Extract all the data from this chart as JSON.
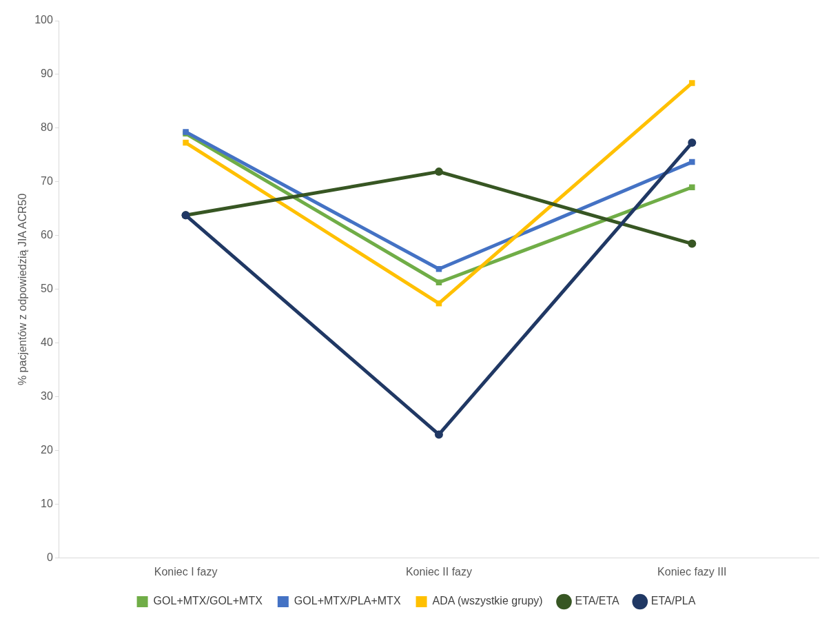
{
  "chart_data": {
    "type": "line",
    "ylabel": "% pacjentów z odpowiedzią JIA ACR50",
    "categories": [
      "Koniec I fazy",
      "Koniec II fazy",
      "Koniec fazy III"
    ],
    "ylim": [
      0,
      100
    ],
    "yticks": [
      0,
      10,
      20,
      30,
      40,
      50,
      60,
      70,
      80,
      90,
      100
    ],
    "grid": false,
    "legend": "bottom",
    "line_style": "solid",
    "series": [
      {
        "name": "GOL+MTX/GOL+MTX",
        "color": "#70ad47",
        "marker": "square",
        "values": [
          79,
          51.3,
          69
        ]
      },
      {
        "name": "GOL+MTX/PLA+MTX",
        "color": "#4472c4",
        "marker": "square",
        "values": [
          79.3,
          53.8,
          73.7
        ]
      },
      {
        "name": "ADA (wszystkie grupy)",
        "color": "#ffc000",
        "marker": "square",
        "values": [
          77.3,
          47.4,
          88.4
        ]
      },
      {
        "name": "ETA/ETA",
        "color": "#375623",
        "marker": "circle",
        "values": [
          63.8,
          71.9,
          58.5
        ]
      },
      {
        "name": "ETA/PLA",
        "color": "#203864",
        "marker": "circle",
        "values": [
          63.8,
          23,
          77.3
        ]
      }
    ]
  }
}
